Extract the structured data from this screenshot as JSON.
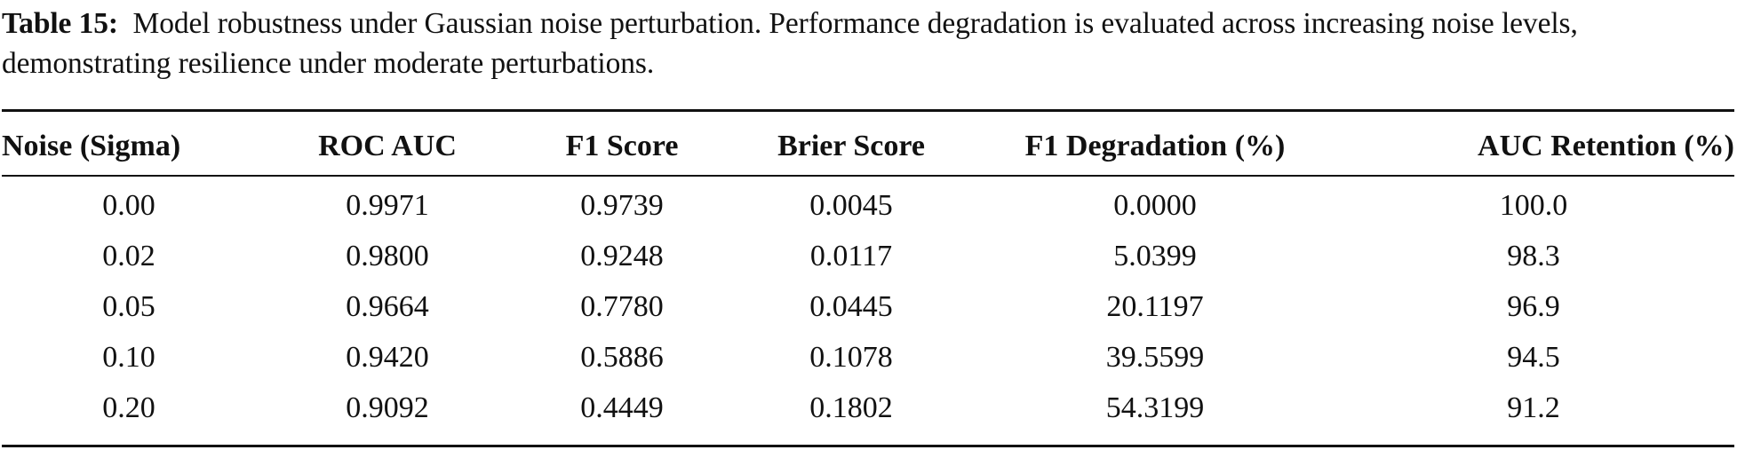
{
  "caption": {
    "label": "Table 15:",
    "text": "Model robustness under Gaussian noise perturbation. Performance degradation is evaluated across increasing noise levels, demonstrating resilience under moderate perturbations."
  },
  "table": {
    "headers": [
      "Noise (Sigma)",
      "ROC AUC",
      "F1 Score",
      "Brier Score",
      "F1 Degradation (%)",
      "AUC Retention (%)"
    ],
    "rows": [
      [
        "0.00",
        "0.9971",
        "0.9739",
        "0.0045",
        "0.0000",
        "100.0"
      ],
      [
        "0.02",
        "0.9800",
        "0.9248",
        "0.0117",
        "5.0399",
        "98.3"
      ],
      [
        "0.05",
        "0.9664",
        "0.7780",
        "0.0445",
        "20.1197",
        "96.9"
      ],
      [
        "0.10",
        "0.9420",
        "0.5886",
        "0.1078",
        "39.5599",
        "94.5"
      ],
      [
        "0.20",
        "0.9092",
        "0.4449",
        "0.1802",
        "54.3199",
        "91.2"
      ]
    ]
  }
}
